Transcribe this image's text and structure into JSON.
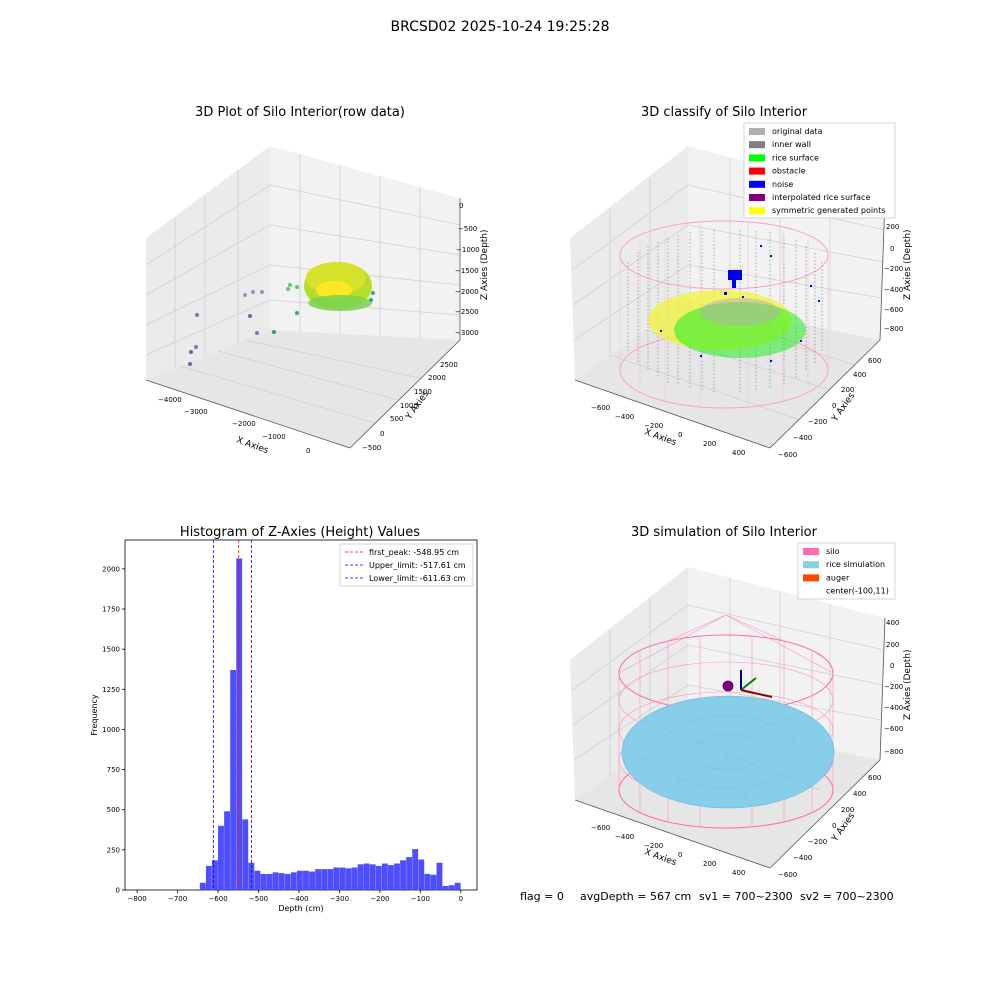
{
  "suptitle": "BRCSD02 2025-10-24 19:25:28",
  "colors": {
    "pane_bg": "#f2f2f2",
    "grid": "#cccccc",
    "hist_bar": "#4444ff",
    "silo": "#ff69b4",
    "rice_sim": "#87ceeb",
    "auger": "#ff4500"
  },
  "chart_data": [
    {
      "type": "scatter3d",
      "title": "3D Plot of Silo Interior(row data)",
      "xlabel": "X Axies",
      "ylabel": "Y Axies",
      "zlabel": "Z Axies (Depth)",
      "x_ticks": [
        "−4000",
        "−3000",
        "−2000",
        "−1000",
        "0"
      ],
      "y_ticks": [
        "−500",
        "0",
        "500",
        "1000",
        "1500",
        "2000",
        "2500"
      ],
      "z_ticks": [
        "−3000",
        "−2500",
        "−2000",
        "−1500",
        "−1000",
        "−500",
        "0"
      ],
      "colormap": "viridis",
      "cluster": {
        "x_center": -300,
        "y_center": 1600,
        "z_center": -1700
      }
    },
    {
      "type": "scatter3d",
      "title": "3D classify of Silo Interior",
      "xlabel": "X Axies",
      "ylabel": "Y Axies",
      "zlabel": "Z Axies (Depth)",
      "x_ticks": [
        "−600",
        "−400",
        "−200",
        "0",
        "200",
        "400"
      ],
      "y_ticks": [
        "−600",
        "−400",
        "−200",
        "0",
        "200",
        "400",
        "600"
      ],
      "z_ticks": [
        "−800",
        "−600",
        "−400",
        "−200",
        "0",
        "200"
      ],
      "legend": [
        {
          "label": "original data",
          "color": "#b0b0b0"
        },
        {
          "label": "inner wall",
          "color": "#808080"
        },
        {
          "label": "rice surface",
          "color": "#00ff00"
        },
        {
          "label": "obstacle",
          "color": "#ff0000"
        },
        {
          "label": "noise",
          "color": "#0000ff"
        },
        {
          "label": "interpolated rice surface",
          "color": "#800080"
        },
        {
          "label": "symmetric generated points",
          "color": "#ffff00"
        }
      ]
    },
    {
      "type": "bar",
      "title": "Histogram of Z-Axies (Height) Values",
      "xlabel": "Depth (cm)",
      "ylabel": "Frequency",
      "xlim": [
        -830,
        40
      ],
      "ylim": [
        0,
        2180
      ],
      "x_ticks": [
        -800,
        -700,
        -600,
        -500,
        -400,
        -300,
        -200,
        -100,
        0
      ],
      "y_ticks": [
        0,
        250,
        500,
        750,
        1000,
        1250,
        1500,
        1750,
        2000
      ],
      "bin_width": 15,
      "bins": [
        [
          -645,
          45
        ],
        [
          -630,
          150
        ],
        [
          -615,
          185
        ],
        [
          -600,
          400
        ],
        [
          -585,
          490
        ],
        [
          -570,
          1370
        ],
        [
          -555,
          2065
        ],
        [
          -540,
          440
        ],
        [
          -525,
          170
        ],
        [
          -510,
          120
        ],
        [
          -495,
          100
        ],
        [
          -480,
          100
        ],
        [
          -465,
          110
        ],
        [
          -450,
          105
        ],
        [
          -435,
          100
        ],
        [
          -420,
          110
        ],
        [
          -405,
          120
        ],
        [
          -390,
          120
        ],
        [
          -375,
          115
        ],
        [
          -360,
          130
        ],
        [
          -345,
          130
        ],
        [
          -330,
          130
        ],
        [
          -315,
          140
        ],
        [
          -300,
          140
        ],
        [
          -285,
          135
        ],
        [
          -270,
          140
        ],
        [
          -255,
          160
        ],
        [
          -240,
          165
        ],
        [
          -225,
          160
        ],
        [
          -210,
          150
        ],
        [
          -195,
          165
        ],
        [
          -180,
          155
        ],
        [
          -165,
          165
        ],
        [
          -150,
          185
        ],
        [
          -135,
          205
        ],
        [
          -120,
          255
        ],
        [
          -105,
          190
        ],
        [
          -90,
          100
        ],
        [
          -75,
          95
        ],
        [
          -60,
          170
        ],
        [
          -45,
          25
        ],
        [
          -30,
          30
        ],
        [
          -15,
          45
        ]
      ],
      "lines": [
        {
          "label": "first_peak: -548.95 cm",
          "x": -548.95,
          "color": "#ff0000"
        },
        {
          "label": "Upper_limit: -517.61 cm",
          "x": -517.61,
          "color": "#0000ff"
        },
        {
          "label": "Lower_limit: -611.63 cm",
          "x": -611.63,
          "color": "#0000ff"
        }
      ]
    },
    {
      "type": "surface3d",
      "title": "3D simulation of Silo Interior",
      "xlabel": "X Axies",
      "ylabel": "Y Axies",
      "zlabel": "Z Axies (Depth)",
      "x_ticks": [
        "−600",
        "−400",
        "−200",
        "0",
        "200",
        "400"
      ],
      "y_ticks": [
        "−600",
        "−400",
        "−200",
        "0",
        "200",
        "400",
        "600"
      ],
      "z_ticks": [
        "−800",
        "−600",
        "−400",
        "−200",
        "0",
        "200",
        "400"
      ],
      "legend": [
        {
          "label": "silo",
          "color": "#ff69b4"
        },
        {
          "label": "rice simulation",
          "color": "#87ceeb"
        },
        {
          "label": "auger",
          "color": "#ff4500"
        },
        {
          "label": "center(-100,11)",
          "color": ""
        }
      ]
    }
  ],
  "footer": {
    "flag": "flag = 0",
    "avg_depth": "avgDepth = 567 cm",
    "sv1": "sv1 = 700~2300",
    "sv2": "sv2 = 700~2300"
  }
}
